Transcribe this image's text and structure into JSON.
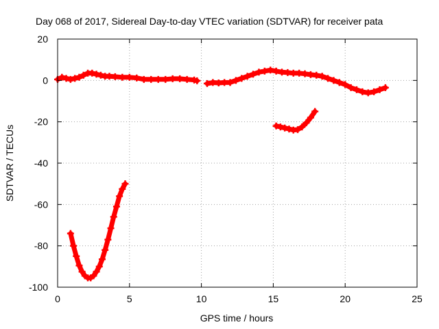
{
  "chart_data": {
    "type": "scatter",
    "title": "Day 068 of 2017, Sidereal Day-to-day VTEC variation (SDTVAR) for receiver pata",
    "xlabel": "GPS time / hours",
    "ylabel": "SDTVAR / TECUs",
    "xlim": [
      0,
      25
    ],
    "ylim": [
      -100,
      20
    ],
    "xticks": [
      0,
      5,
      10,
      15,
      20,
      25
    ],
    "yticks": [
      -100,
      -80,
      -60,
      -40,
      -20,
      0,
      20
    ],
    "xtick_labels": [
      "0",
      "5",
      "10",
      "15",
      "20",
      "25"
    ],
    "ytick_labels": [
      "-100",
      "-80",
      "-60",
      "-40",
      "-20",
      "0",
      "20"
    ],
    "grid": true,
    "series_color": "#ff0000",
    "series": [
      {
        "name": "main-track",
        "x": [
          0.0,
          0.3,
          0.6,
          0.9,
          1.2,
          1.5,
          1.8,
          2.1,
          2.4,
          2.7,
          3.0,
          3.3,
          3.6,
          4.0,
          4.5,
          5.0,
          5.5,
          6.0,
          6.5,
          7.0,
          7.5,
          8.0,
          8.5,
          9.0,
          9.5,
          9.7
        ],
        "y": [
          0.5,
          1.5,
          1.0,
          0.5,
          1.0,
          1.5,
          2.5,
          3.5,
          3.5,
          3.0,
          2.5,
          2.0,
          2.0,
          1.8,
          1.5,
          1.5,
          1.2,
          0.5,
          0.5,
          0.5,
          0.5,
          0.8,
          0.8,
          0.5,
          0.2,
          -0.2
        ]
      },
      {
        "name": "main-track-2",
        "x": [
          10.4,
          10.8,
          11.2,
          11.6,
          12.0,
          12.4,
          12.8,
          13.2,
          13.6,
          14.0,
          14.4,
          14.8,
          15.2,
          15.6,
          16.0,
          16.4,
          16.8,
          17.2,
          17.6,
          18.0,
          18.4,
          18.8,
          19.2,
          19.6,
          20.0,
          20.4,
          20.8,
          21.2,
          21.6,
          22.0,
          22.4,
          22.8
        ],
        "y": [
          -1.5,
          -1.0,
          -1.2,
          -1.0,
          -1.0,
          0.0,
          1.0,
          2.0,
          3.0,
          4.0,
          4.5,
          5.0,
          4.5,
          4.0,
          3.8,
          3.5,
          3.5,
          3.2,
          2.8,
          2.5,
          2.0,
          1.0,
          0.0,
          -1.0,
          -2.0,
          -3.5,
          -4.5,
          -5.5,
          -6.0,
          -5.5,
          -4.5,
          -3.5
        ]
      },
      {
        "name": "arc-high",
        "x": [
          15.2,
          15.5,
          15.8,
          16.1,
          16.4,
          16.7,
          17.0,
          17.3,
          17.6,
          17.9
        ],
        "y": [
          -22.0,
          -22.5,
          -23.0,
          -23.5,
          -24.0,
          -23.8,
          -22.5,
          -20.5,
          -18.0,
          -15.0
        ]
      },
      {
        "name": "arc-low",
        "x": [
          0.9,
          1.1,
          1.3,
          1.5,
          1.7,
          1.9,
          2.1,
          2.3,
          2.5,
          2.7,
          2.9,
          3.1,
          3.3,
          3.5,
          3.7,
          3.9,
          4.1,
          4.3,
          4.5,
          4.7
        ],
        "y": [
          -74.0,
          -80.0,
          -85.0,
          -89.5,
          -92.5,
          -94.5,
          -95.5,
          -95.5,
          -94.5,
          -92.5,
          -90.0,
          -86.5,
          -82.0,
          -77.0,
          -71.5,
          -66.0,
          -61.0,
          -56.0,
          -52.5,
          -50.0
        ]
      }
    ]
  }
}
